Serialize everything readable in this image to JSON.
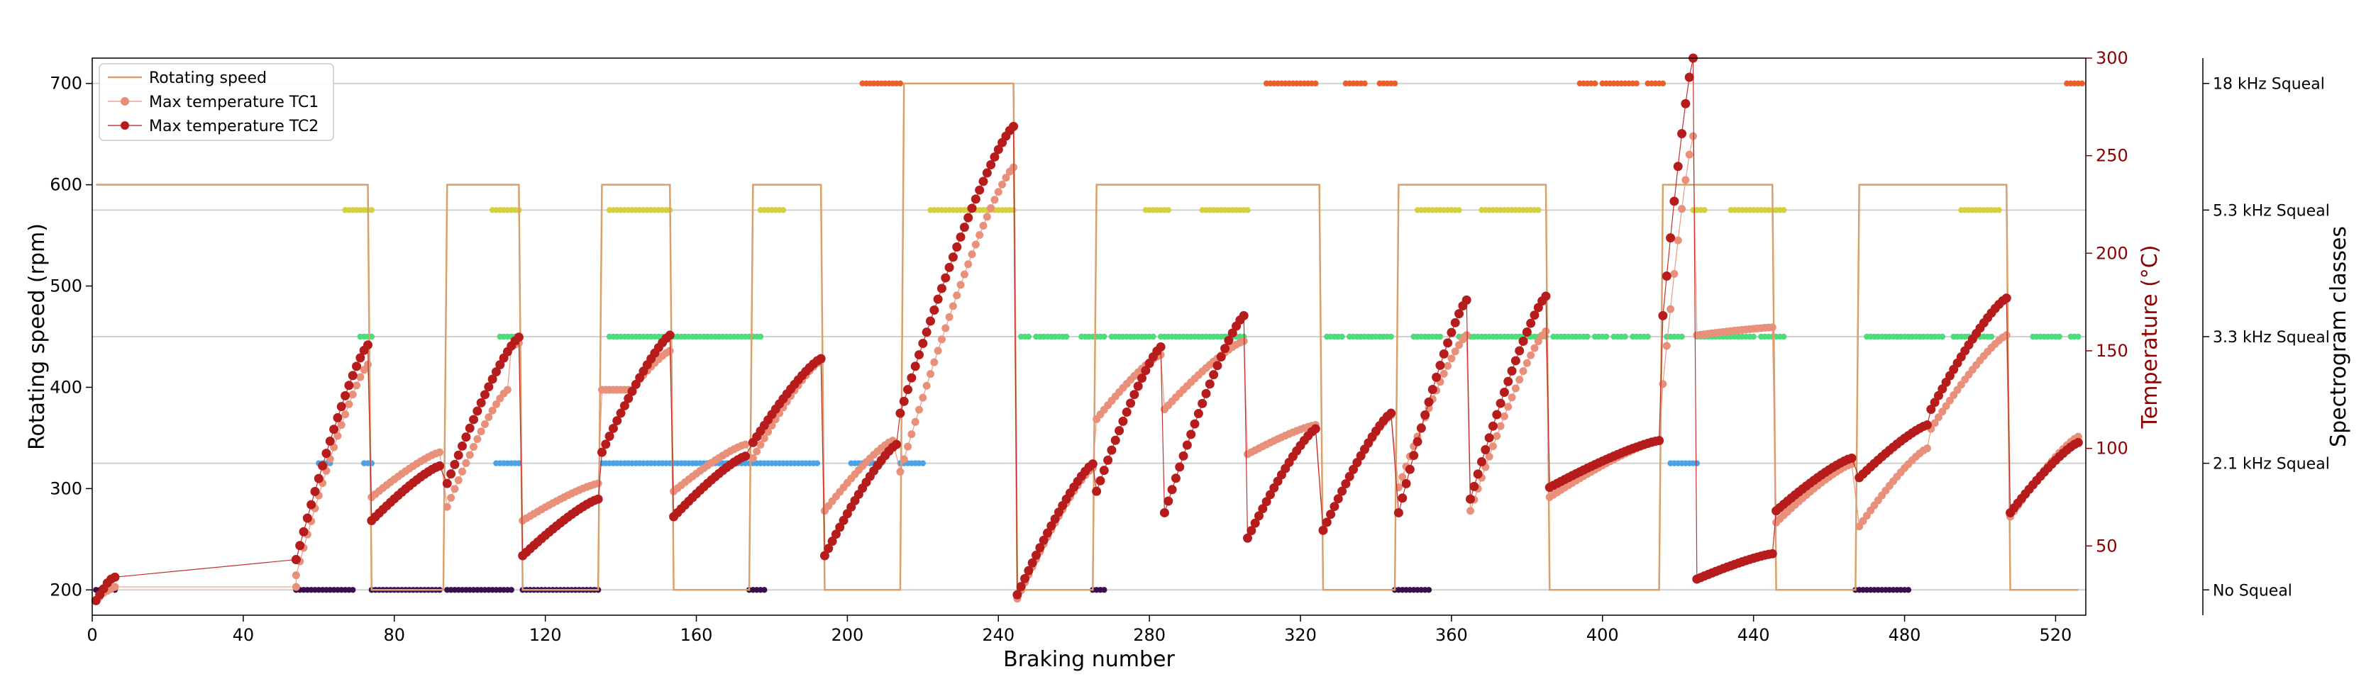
{
  "chart_data": {
    "type": "line",
    "xlabel": "Braking number",
    "ylabel_left": "Rotating speed (rpm)",
    "ylabel_right": "Temperature (°C)",
    "ylabel_far_right": "Spectrogram classes",
    "xlim": [
      0,
      528
    ],
    "ylim_left": [
      175,
      725
    ],
    "ylim_right": [
      14.5,
      300
    ],
    "x_ticks": [
      0,
      40,
      80,
      120,
      160,
      200,
      240,
      280,
      320,
      360,
      400,
      440,
      480,
      520
    ],
    "y_ticks_left": [
      200,
      300,
      400,
      500,
      600,
      700
    ],
    "y_ticks_right": [
      50,
      100,
      150,
      200,
      250,
      300
    ],
    "legend_position": "top-left",
    "legend": [
      "Rotating speed",
      "Max temperature TC1",
      "Max temperature TC2"
    ],
    "spectrogram_classes": [
      {
        "name": "No Squeal",
        "level": 200,
        "color": "#3b0f4f"
      },
      {
        "name": "2.1 kHz Squeal",
        "level": 325,
        "color": "#4aa3e8"
      },
      {
        "name": "3.3 kHz Squeal",
        "level": 450,
        "color": "#4cdc7a"
      },
      {
        "name": "5.3 kHz Squeal",
        "level": 575,
        "color": "#d4d23c"
      },
      {
        "name": "18 kHz Squeal",
        "level": 700,
        "color": "#e8602c"
      }
    ],
    "speed_series": {
      "name": "Rotating speed",
      "color": "#d9a06a",
      "x": [
        1,
        73,
        74,
        93,
        94,
        113,
        114,
        134,
        135,
        153,
        154,
        174,
        175,
        193,
        194,
        214,
        215,
        244,
        245,
        265,
        266,
        325,
        326,
        345,
        346,
        385,
        386,
        415,
        416,
        445,
        446,
        467,
        468,
        507,
        508,
        526
      ],
      "y": [
        600,
        600,
        200,
        200,
        600,
        600,
        200,
        200,
        600,
        600,
        200,
        200,
        600,
        600,
        200,
        200,
        700,
        700,
        200,
        200,
        600,
        600,
        200,
        200,
        600,
        600,
        200,
        200,
        600,
        600,
        200,
        200,
        600,
        600,
        200,
        200
      ]
    },
    "temperature_series": [
      {
        "name": "Max temperature TC1",
        "color": "#e8907a",
        "segments": [
          {
            "x": [
              1,
              2,
              3,
              4,
              5,
              6,
              54
            ],
            "y": [
              22,
              24,
              26,
              27,
              28,
              29,
              29
            ]
          },
          {
            "x_start": 54,
            "x_end": 73,
            "y_start": 35,
            "y_end": 143,
            "peak_at": 73
          },
          {
            "x_start": 74,
            "x_end": 92,
            "y_start": 75,
            "y_end": 98
          },
          {
            "x_start": 94,
            "x_end": 110,
            "y_start": 70,
            "y_end": 130
          },
          {
            "x_start": 111,
            "x_end": 113,
            "y_start": 152,
            "y_end": 154
          },
          {
            "x_start": 114,
            "x_end": 134,
            "y_start": 63,
            "y_end": 82
          },
          {
            "x_start": 135,
            "x_end": 143,
            "y_start": 130,
            "y_end": 130
          },
          {
            "x_start": 144,
            "x_end": 153,
            "y_start": 133,
            "y_end": 150
          },
          {
            "x_start": 154,
            "x_end": 173,
            "y_start": 78,
            "y_end": 102
          },
          {
            "x_start": 175,
            "x_end": 193,
            "y_start": 95,
            "y_end": 145
          },
          {
            "x_start": 194,
            "x_end": 212,
            "y_start": 68,
            "y_end": 104
          },
          {
            "x_start": 214,
            "x_end": 244,
            "y_start": 88,
            "y_end": 244
          },
          {
            "x_start": 245,
            "x_end": 265,
            "y_start": 23,
            "y_end": 90
          },
          {
            "x_start": 266,
            "x_end": 283,
            "y_start": 115,
            "y_end": 148
          },
          {
            "x_start": 284,
            "x_end": 305,
            "y_start": 120,
            "y_end": 155
          },
          {
            "x_start": 306,
            "x_end": 324,
            "y_start": 97,
            "y_end": 112
          },
          {
            "x_start": 326,
            "x_end": 344,
            "y_start": 58,
            "y_end": 117
          },
          {
            "x_start": 346,
            "x_end": 364,
            "y_start": 80,
            "y_end": 158
          },
          {
            "x_start": 365,
            "x_end": 385,
            "y_start": 68,
            "y_end": 160
          },
          {
            "x_start": 386,
            "x_end": 415,
            "y_start": 75,
            "y_end": 104
          },
          {
            "x_start": 416,
            "x_end": 424,
            "y_start": 133,
            "y_end": 260
          },
          {
            "x_start": 425,
            "x_end": 445,
            "y_start": 158,
            "y_end": 162
          },
          {
            "x_start": 446,
            "x_end": 466,
            "y_start": 62,
            "y_end": 92
          },
          {
            "x_start": 468,
            "x_end": 486,
            "y_start": 60,
            "y_end": 100
          },
          {
            "x_start": 487,
            "x_end": 507,
            "y_start": 110,
            "y_end": 158
          },
          {
            "x_start": 508,
            "x_end": 526,
            "y_start": 65,
            "y_end": 106
          }
        ]
      },
      {
        "name": "Max temperature TC2",
        "color": "#b71c1c",
        "segments": [
          {
            "x": [
              1,
              2,
              3,
              4,
              5,
              6,
              54
            ],
            "y": [
              22,
              25,
              28,
              31,
              33,
              34,
              43
            ]
          },
          {
            "x_start": 54,
            "x_end": 73,
            "y_start": 43,
            "y_end": 153
          },
          {
            "x_start": 74,
            "x_end": 92,
            "y_start": 63,
            "y_end": 91
          },
          {
            "x_start": 94,
            "x_end": 113,
            "y_start": 82,
            "y_end": 157
          },
          {
            "x_start": 114,
            "x_end": 134,
            "y_start": 45,
            "y_end": 74
          },
          {
            "x_start": 135,
            "x_end": 153,
            "y_start": 98,
            "y_end": 158
          },
          {
            "x_start": 154,
            "x_end": 173,
            "y_start": 65,
            "y_end": 96
          },
          {
            "x_start": 175,
            "x_end": 193,
            "y_start": 103,
            "y_end": 146
          },
          {
            "x_start": 194,
            "x_end": 213,
            "y_start": 45,
            "y_end": 102
          },
          {
            "x_start": 214,
            "x_end": 244,
            "y_start": 118,
            "y_end": 265
          },
          {
            "x_start": 245,
            "x_end": 265,
            "y_start": 25,
            "y_end": 92
          },
          {
            "x_start": 266,
            "x_end": 283,
            "y_start": 78,
            "y_end": 152
          },
          {
            "x_start": 284,
            "x_end": 305,
            "y_start": 67,
            "y_end": 168
          },
          {
            "x_start": 306,
            "x_end": 324,
            "y_start": 54,
            "y_end": 110
          },
          {
            "x_start": 326,
            "x_end": 344,
            "y_start": 58,
            "y_end": 118
          },
          {
            "x_start": 346,
            "x_end": 364,
            "y_start": 67,
            "y_end": 176
          },
          {
            "x_start": 365,
            "x_end": 385,
            "y_start": 74,
            "y_end": 178
          },
          {
            "x_start": 386,
            "x_end": 415,
            "y_start": 80,
            "y_end": 104
          },
          {
            "x_start": 416,
            "x_end": 424,
            "y_start": 168,
            "y_end": 300
          },
          {
            "x_start": 425,
            "x_end": 445,
            "y_start": 33,
            "y_end": 46
          },
          {
            "x_start": 446,
            "x_end": 466,
            "y_start": 68,
            "y_end": 95
          },
          {
            "x_start": 468,
            "x_end": 486,
            "y_start": 85,
            "y_end": 112
          },
          {
            "x_start": 487,
            "x_end": 507,
            "y_start": 120,
            "y_end": 177
          },
          {
            "x_start": 508,
            "x_end": 526,
            "y_start": 67,
            "y_end": 103
          }
        ]
      }
    ],
    "class_ranges": {
      "No Squeal": [
        [
          1,
          6
        ],
        [
          54,
          63
        ],
        [
          64,
          69
        ],
        [
          74,
          92
        ],
        [
          94,
          111
        ],
        [
          114,
          134
        ],
        [
          174,
          178
        ],
        [
          265,
          268
        ],
        [
          345,
          354
        ],
        [
          467,
          481
        ]
      ],
      "2.1 kHz Squeal": [
        [
          60,
          63
        ],
        [
          72,
          74
        ],
        [
          107,
          113
        ],
        [
          135,
          192
        ],
        [
          201,
          209
        ],
        [
          214,
          220
        ],
        [
          418,
          425
        ]
      ],
      "3.3 kHz Squeal": [
        [
          71,
          74
        ],
        [
          108,
          112
        ],
        [
          137,
          152
        ],
        [
          153,
          167
        ],
        [
          168,
          177
        ],
        [
          246,
          248
        ],
        [
          250,
          258
        ],
        [
          262,
          268
        ],
        [
          270,
          281
        ],
        [
          283,
          297
        ],
        [
          298,
          305
        ],
        [
          327,
          331
        ],
        [
          333,
          344
        ],
        [
          350,
          357
        ],
        [
          362,
          375
        ],
        [
          376,
          385
        ],
        [
          387,
          396
        ],
        [
          398,
          401
        ],
        [
          403,
          406
        ],
        [
          408,
          412
        ],
        [
          417,
          421
        ],
        [
          425,
          440
        ],
        [
          442,
          448
        ],
        [
          470,
          490
        ],
        [
          493,
          503
        ],
        [
          514,
          521
        ],
        [
          524,
          526
        ]
      ],
      "5.3 kHz Squeal": [
        [
          67,
          74
        ],
        [
          106,
          108
        ],
        [
          109,
          113
        ],
        [
          137,
          153
        ],
        [
          177,
          183
        ],
        [
          222,
          244
        ],
        [
          279,
          285
        ],
        [
          294,
          306
        ],
        [
          351,
          362
        ],
        [
          368,
          383
        ],
        [
          424,
          427
        ],
        [
          434,
          448
        ],
        [
          495,
          505
        ]
      ],
      "18 kHz Squeal": [
        [
          204,
          214
        ],
        [
          311,
          324
        ],
        [
          332,
          337
        ],
        [
          341,
          345
        ],
        [
          394,
          398
        ],
        [
          400,
          404
        ],
        [
          405,
          409
        ],
        [
          412,
          416
        ],
        [
          523,
          527
        ]
      ]
    }
  }
}
